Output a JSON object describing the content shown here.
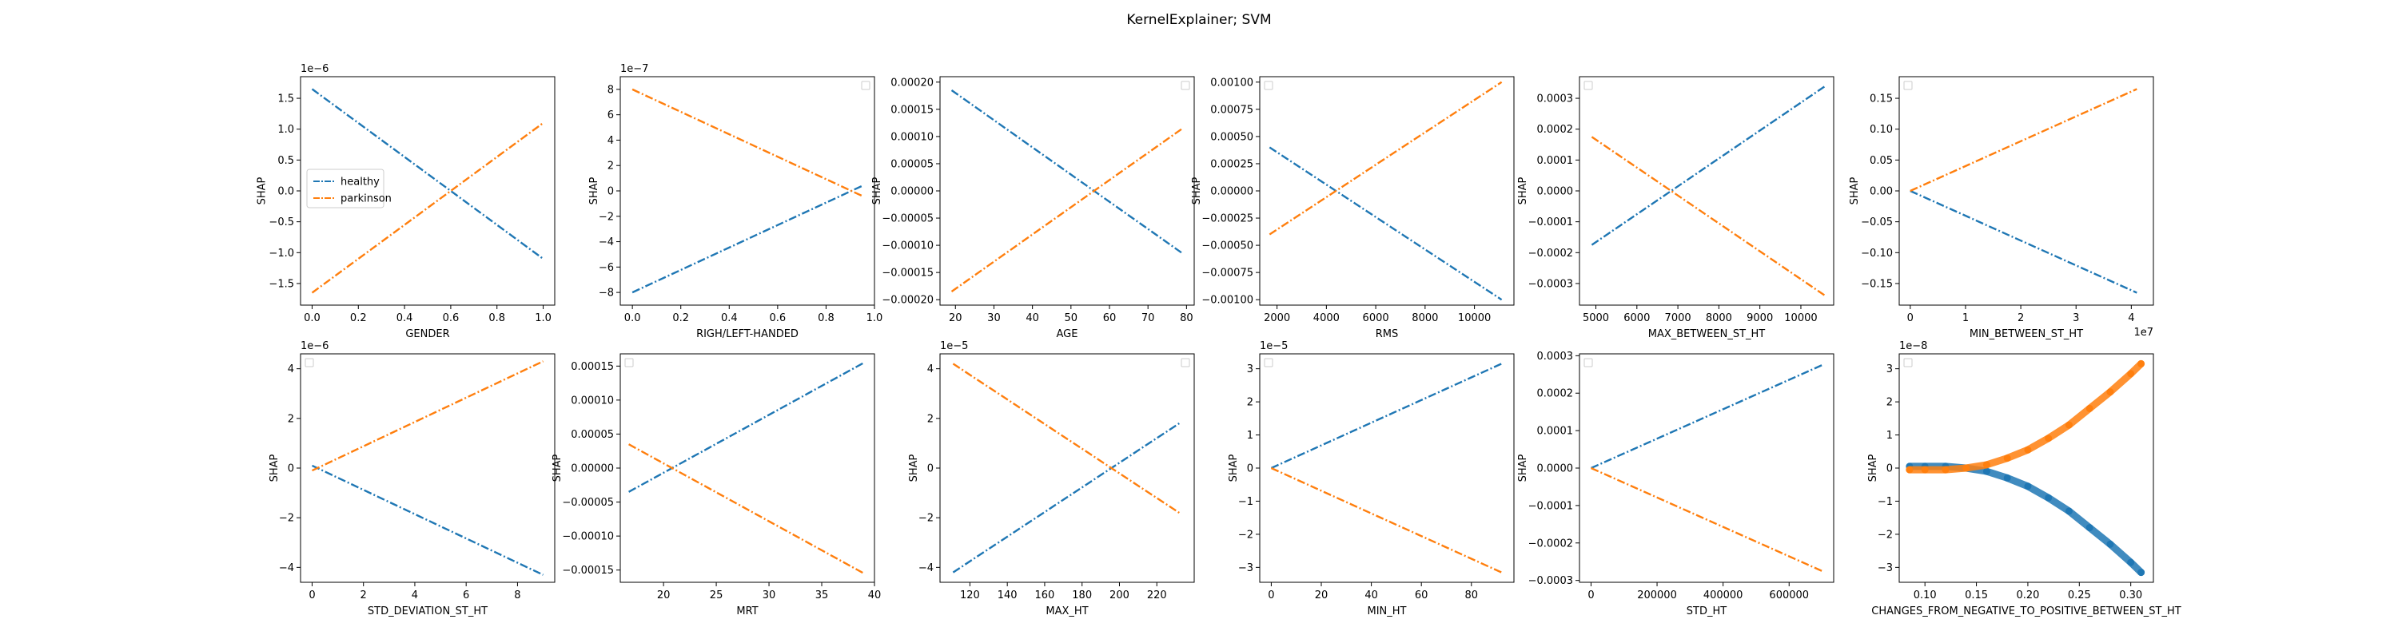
{
  "figure": {
    "title": "KernelExplainer; SVM",
    "colors": {
      "healthy": "#1f77b4",
      "parkinson": "#ff7f0e"
    },
    "legend_entries": [
      "healthy",
      "parkinson"
    ]
  },
  "chart_data": [
    {
      "type": "line",
      "xlabel": "GENDER",
      "ylabel": "SHAP",
      "multiplier": "1e−6",
      "xlim": [
        -0.05,
        1.05
      ],
      "ylim": [
        -1.85,
        1.85
      ],
      "xticks": [
        0.0,
        0.2,
        0.4,
        0.6,
        0.8,
        1.0
      ],
      "xticklabels": [
        "0.0",
        "0.2",
        "0.4",
        "0.6",
        "0.8",
        "1.0"
      ],
      "yticks": [
        -1.5,
        -1.0,
        -0.5,
        0.0,
        0.5,
        1.0,
        1.5
      ],
      "yticklabels": [
        "−1.5",
        "−1.0",
        "−0.5",
        "0.0",
        "0.5",
        "1.0",
        "1.5"
      ],
      "legend": "center-left",
      "legend_shown": true,
      "series": [
        {
          "name": "healthy",
          "x": [
            0.0,
            1.0
          ],
          "y": [
            1.65,
            -1.1
          ]
        },
        {
          "name": "parkinson",
          "x": [
            0.0,
            1.0
          ],
          "y": [
            -1.65,
            1.1
          ]
        }
      ]
    },
    {
      "type": "line",
      "xlabel": "RIGH/LEFT-HANDED",
      "ylabel": "SHAP",
      "multiplier": "1e−7",
      "xlim": [
        -0.05,
        1.0
      ],
      "ylim": [
        -9,
        9
      ],
      "xticks": [
        0.0,
        0.2,
        0.4,
        0.6,
        0.8,
        1.0
      ],
      "xticklabels": [
        "0.0",
        "0.2",
        "0.4",
        "0.6",
        "0.8",
        "1.0"
      ],
      "yticks": [
        -8,
        -6,
        -4,
        -2,
        0,
        2,
        4,
        6,
        8
      ],
      "yticklabels": [
        "−8",
        "−6",
        "−4",
        "−2",
        "0",
        "2",
        "4",
        "6",
        "8"
      ],
      "legend": "top-right",
      "legend_shown": false,
      "series": [
        {
          "x": [
            0.0,
            0.95
          ],
          "y": [
            -8.0,
            0.4
          ]
        },
        {
          "x": [
            0.0,
            0.95
          ],
          "y": [
            8.0,
            -0.4
          ]
        }
      ]
    },
    {
      "type": "line",
      "xlabel": "AGE",
      "ylabel": "SHAP",
      "xlim": [
        16,
        82
      ],
      "ylim": [
        -0.00021,
        0.00021
      ],
      "xticks": [
        20,
        30,
        40,
        50,
        60,
        70,
        80
      ],
      "xticklabels": [
        "20",
        "30",
        "40",
        "50",
        "60",
        "70",
        "80"
      ],
      "yticks": [
        -0.0002,
        -0.00015,
        -0.0001,
        -5e-05,
        0,
        5e-05,
        0.0001,
        0.00015,
        0.0002
      ],
      "yticklabels": [
        "−0.00020",
        "−0.00015",
        "−0.00010",
        "−0.00005",
        "0.00000",
        "0.00005",
        "0.00010",
        "0.00015",
        "0.00020"
      ],
      "legend": "top-right",
      "legend_shown": false,
      "series": [
        {
          "x": [
            19,
            79
          ],
          "y": [
            0.000185,
            -0.000115
          ]
        },
        {
          "x": [
            19,
            79
          ],
          "y": [
            -0.000185,
            0.000115
          ]
        }
      ]
    },
    {
      "type": "line",
      "xlabel": "RMS",
      "ylabel": "SHAP",
      "xlim": [
        1300,
        11600
      ],
      "ylim": [
        -0.00105,
        0.00105
      ],
      "xticks": [
        2000,
        4000,
        6000,
        8000,
        10000
      ],
      "xticklabels": [
        "2000",
        "4000",
        "6000",
        "8000",
        "10000"
      ],
      "yticks": [
        -0.001,
        -0.00075,
        -0.0005,
        -0.00025,
        0,
        0.00025,
        0.0005,
        0.00075,
        0.001
      ],
      "yticklabels": [
        "−0.00100",
        "−0.00075",
        "−0.00050",
        "−0.00025",
        "0.00000",
        "0.00025",
        "0.00050",
        "0.00075",
        "0.00100"
      ],
      "legend": "top-left",
      "legend_shown": false,
      "series": [
        {
          "x": [
            1700,
            11100
          ],
          "y": [
            0.0004,
            -0.001
          ]
        },
        {
          "x": [
            1700,
            11100
          ],
          "y": [
            -0.0004,
            0.001
          ]
        }
      ]
    },
    {
      "type": "line",
      "xlabel": "MAX_BETWEEN_ST_HT",
      "ylabel": "SHAP",
      "xlim": [
        4600,
        10800
      ],
      "ylim": [
        -0.00037,
        0.00037
      ],
      "xticks": [
        5000,
        6000,
        7000,
        8000,
        9000,
        10000
      ],
      "xticklabels": [
        "5000",
        "6000",
        "7000",
        "8000",
        "9000",
        "10000"
      ],
      "yticks": [
        -0.0003,
        -0.0002,
        -0.0001,
        0,
        0.0001,
        0.0002,
        0.0003
      ],
      "yticklabels": [
        "−0.0003",
        "−0.0002",
        "−0.0001",
        "0.0000",
        "0.0001",
        "0.0002",
        "0.0003"
      ],
      "legend": "top-left",
      "legend_shown": false,
      "series": [
        {
          "x": [
            4900,
            10600
          ],
          "y": [
            -0.000175,
            0.00034
          ]
        },
        {
          "x": [
            4900,
            10600
          ],
          "y": [
            0.000175,
            -0.00034
          ]
        }
      ]
    },
    {
      "type": "line",
      "xlabel": "MIN_BETWEEN_ST_HT",
      "ylabel": "SHAP",
      "xmultiplier": "1e7",
      "xlim": [
        -0.2,
        4.4
      ],
      "ylim": [
        -0.185,
        0.185
      ],
      "xticks": [
        0,
        1,
        2,
        3,
        4
      ],
      "xticklabels": [
        "0",
        "1",
        "2",
        "3",
        "4"
      ],
      "yticks": [
        -0.15,
        -0.1,
        -0.05,
        0,
        0.05,
        0.1,
        0.15
      ],
      "yticklabels": [
        "−0.15",
        "−0.10",
        "−0.05",
        "0.00",
        "0.05",
        "0.10",
        "0.15"
      ],
      "legend": "top-left",
      "legend_shown": false,
      "series": [
        {
          "x": [
            0,
            4.1
          ],
          "y": [
            0,
            -0.165
          ]
        },
        {
          "x": [
            0,
            4.1
          ],
          "y": [
            0,
            0.165
          ]
        }
      ]
    },
    {
      "type": "line",
      "xlabel": "STD_DEVIATION_ST_HT",
      "ylabel": "SHAP",
      "multiplier": "1e−6",
      "xlim": [
        -0.45,
        9.45
      ],
      "ylim": [
        -4.6,
        4.6
      ],
      "xticks": [
        0,
        2,
        4,
        6,
        8
      ],
      "xticklabels": [
        "0",
        "2",
        "4",
        "6",
        "8"
      ],
      "yticks": [
        -4,
        -2,
        0,
        2,
        4
      ],
      "yticklabels": [
        "−4",
        "−2",
        "0",
        "2",
        "4"
      ],
      "legend": "top-left",
      "legend_shown": false,
      "series": [
        {
          "x": [
            0,
            9
          ],
          "y": [
            0.1,
            -4.3
          ]
        },
        {
          "x": [
            0,
            9
          ],
          "y": [
            -0.1,
            4.3
          ]
        }
      ]
    },
    {
      "type": "line",
      "xlabel": "MRT",
      "ylabel": "SHAP",
      "xlim": [
        15.9,
        40
      ],
      "ylim": [
        -0.000168,
        0.000168
      ],
      "xticks": [
        20,
        25,
        30,
        35,
        40
      ],
      "xticklabels": [
        "20",
        "25",
        "30",
        "35",
        "40"
      ],
      "yticks": [
        -0.00015,
        -0.0001,
        -5e-05,
        0,
        5e-05,
        0.0001,
        0.00015
      ],
      "yticklabels": [
        "−0.00015",
        "−0.00010",
        "−0.00005",
        "0.00000",
        "0.00005",
        "0.00010",
        "0.00015"
      ],
      "legend": "top-left",
      "legend_shown": false,
      "series": [
        {
          "x": [
            16.7,
            39
          ],
          "y": [
            -3.5e-05,
            0.000155
          ]
        },
        {
          "x": [
            16.7,
            39
          ],
          "y": [
            3.5e-05,
            -0.000155
          ]
        }
      ]
    },
    {
      "type": "line",
      "xlabel": "MAX_HT",
      "ylabel": "SHAP",
      "multiplier": "1e−5",
      "xlim": [
        104,
        240
      ],
      "ylim": [
        -4.6,
        4.6
      ],
      "xticks": [
        120,
        140,
        160,
        180,
        200,
        220
      ],
      "xticklabels": [
        "120",
        "140",
        "160",
        "180",
        "200",
        "220"
      ],
      "yticks": [
        -4,
        -2,
        0,
        2,
        4
      ],
      "yticklabels": [
        "−4",
        "−2",
        "0",
        "2",
        "4"
      ],
      "legend": "top-right",
      "legend_shown": false,
      "series": [
        {
          "x": [
            111,
            232
          ],
          "y": [
            -4.2,
            1.8
          ]
        },
        {
          "x": [
            111,
            232
          ],
          "y": [
            4.2,
            -1.8
          ]
        }
      ]
    },
    {
      "type": "line",
      "xlabel": "MIN_HT",
      "ylabel": "SHAP",
      "multiplier": "1e−5",
      "xlim": [
        -4.6,
        97
      ],
      "ylim": [
        -3.45,
        3.45
      ],
      "xticks": [
        0,
        20,
        40,
        60,
        80
      ],
      "xticklabels": [
        "0",
        "20",
        "40",
        "60",
        "80"
      ],
      "yticks": [
        -3,
        -2,
        -1,
        0,
        1,
        2,
        3
      ],
      "yticklabels": [
        "−3",
        "−2",
        "−1",
        "0",
        "1",
        "2",
        "3"
      ],
      "legend": "top-left",
      "legend_shown": false,
      "series": [
        {
          "x": [
            0,
            92
          ],
          "y": [
            0,
            3.15
          ]
        },
        {
          "x": [
            0,
            92
          ],
          "y": [
            0,
            -3.15
          ]
        }
      ]
    },
    {
      "type": "line",
      "xlabel": "STD_HT",
      "ylabel": "SHAP",
      "xlim": [
        -35000,
        735000
      ],
      "ylim": [
        -0.000305,
        0.000305
      ],
      "xticks": [
        0,
        200000,
        400000,
        600000
      ],
      "xticklabels": [
        "0",
        "200000",
        "400000",
        "600000"
      ],
      "yticks": [
        -0.0003,
        -0.0002,
        -0.0001,
        0,
        0.0001,
        0.0002,
        0.0003
      ],
      "yticklabels": [
        "−0.0003",
        "−0.0002",
        "−0.0001",
        "0.0000",
        "0.0001",
        "0.0002",
        "0.0003"
      ],
      "legend": "top-left",
      "legend_shown": false,
      "series": [
        {
          "x": [
            0,
            700000
          ],
          "y": [
            0,
            0.000275
          ]
        },
        {
          "x": [
            0,
            700000
          ],
          "y": [
            0,
            -0.000275
          ]
        }
      ]
    },
    {
      "type": "scatter",
      "xlabel": "CHANGES_FROM_NEGATIVE_TO_POSITIVE_BETWEEN_ST_HT",
      "ylabel": "SHAP",
      "multiplier": "1e−8",
      "xlim": [
        0.075,
        0.322
      ],
      "ylim": [
        -3.45,
        3.45
      ],
      "xticks": [
        0.1,
        0.15,
        0.2,
        0.25,
        0.3
      ],
      "xticklabels": [
        "0.10",
        "0.15",
        "0.20",
        "0.25",
        "0.30"
      ],
      "yticks": [
        -3,
        -2,
        -1,
        0,
        1,
        2,
        3
      ],
      "yticklabels": [
        "−3",
        "−2",
        "−1",
        "0",
        "1",
        "2",
        "3"
      ],
      "legend": "top-left",
      "legend_shown": false,
      "series": [
        {
          "x": [
            0.085,
            0.1,
            0.12,
            0.14,
            0.16,
            0.18,
            0.2,
            0.22,
            0.24,
            0.26,
            0.28,
            0.3,
            0.31
          ],
          "y": [
            0.05,
            0.05,
            0.05,
            0.0,
            -0.1,
            -0.3,
            -0.55,
            -0.9,
            -1.3,
            -1.8,
            -2.3,
            -2.85,
            -3.15
          ]
        },
        {
          "x": [
            0.085,
            0.1,
            0.12,
            0.14,
            0.16,
            0.18,
            0.2,
            0.22,
            0.24,
            0.26,
            0.28,
            0.3,
            0.31
          ],
          "y": [
            -0.05,
            -0.05,
            -0.05,
            0.0,
            0.1,
            0.3,
            0.55,
            0.9,
            1.3,
            1.8,
            2.3,
            2.85,
            3.15
          ]
        }
      ]
    }
  ]
}
